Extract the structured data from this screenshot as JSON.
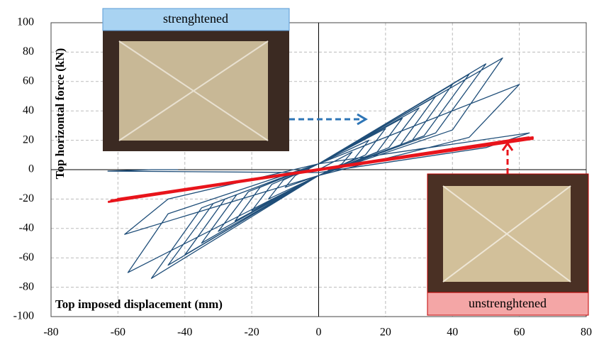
{
  "chart_data": {
    "type": "line",
    "xlabel": "Top imposed displacement (mm)",
    "ylabel": "Top horizontal force (kN)",
    "xlim": [
      -80,
      80
    ],
    "xticks": [
      -80,
      -60,
      -40,
      -20,
      0,
      20,
      40,
      60,
      80
    ],
    "ylim": [
      -100,
      100
    ],
    "yticks": [
      -100,
      -80,
      -60,
      -40,
      -20,
      0,
      20,
      40,
      60,
      80,
      100
    ],
    "grid": true,
    "labels": [
      "strenghtened",
      "unstrenghtened"
    ],
    "series": [
      {
        "color": "#1f4e79",
        "x": [
          0,
          10,
          7,
          0,
          -10,
          -7,
          0,
          15,
          10.5,
          0,
          -15,
          -10.5,
          0,
          20,
          14,
          0,
          -20,
          -14,
          0,
          25,
          17.5,
          0,
          -25,
          -17.5,
          0,
          30,
          21,
          0,
          -30,
          -21,
          0,
          35,
          24.5,
          0,
          -35,
          -24.5,
          0,
          40,
          28,
          0,
          -40,
          -28,
          0,
          45,
          31.5,
          0,
          -45,
          -31.5,
          0,
          50,
          35,
          0,
          -50,
          -35,
          0,
          55,
          40,
          0,
          -57,
          -45,
          0,
          60,
          45,
          0,
          -58,
          -45,
          0,
          63,
          50,
          0,
          -63,
          -50,
          -42
        ],
        "values": [
          0,
          12,
          4,
          -4,
          -12,
          -4,
          4,
          20,
          7,
          -4,
          -20,
          -7,
          4,
          28,
          10,
          -4,
          -28,
          -10,
          4,
          35,
          12,
          -4,
          -35,
          -12,
          4,
          42,
          15,
          -4,
          -42,
          -15,
          4,
          50,
          17,
          -4,
          -50,
          -17,
          4,
          58,
          20,
          -4,
          -58,
          -20,
          4,
          65,
          23,
          -4,
          -65,
          -23,
          4,
          72,
          25,
          -4,
          -74,
          -26,
          4,
          76,
          27,
          -4,
          -70,
          -30,
          4,
          58,
          22,
          -4,
          -44,
          -20,
          4,
          25,
          15,
          -2,
          -1,
          0,
          0
        ]
      },
      {
        "color": "#e8141b",
        "x": [
          -63,
          64,
          -60,
          64,
          -62,
          63
        ],
        "values": [
          -22,
          22,
          -20,
          21,
          -21,
          22
        ]
      }
    ]
  }
}
